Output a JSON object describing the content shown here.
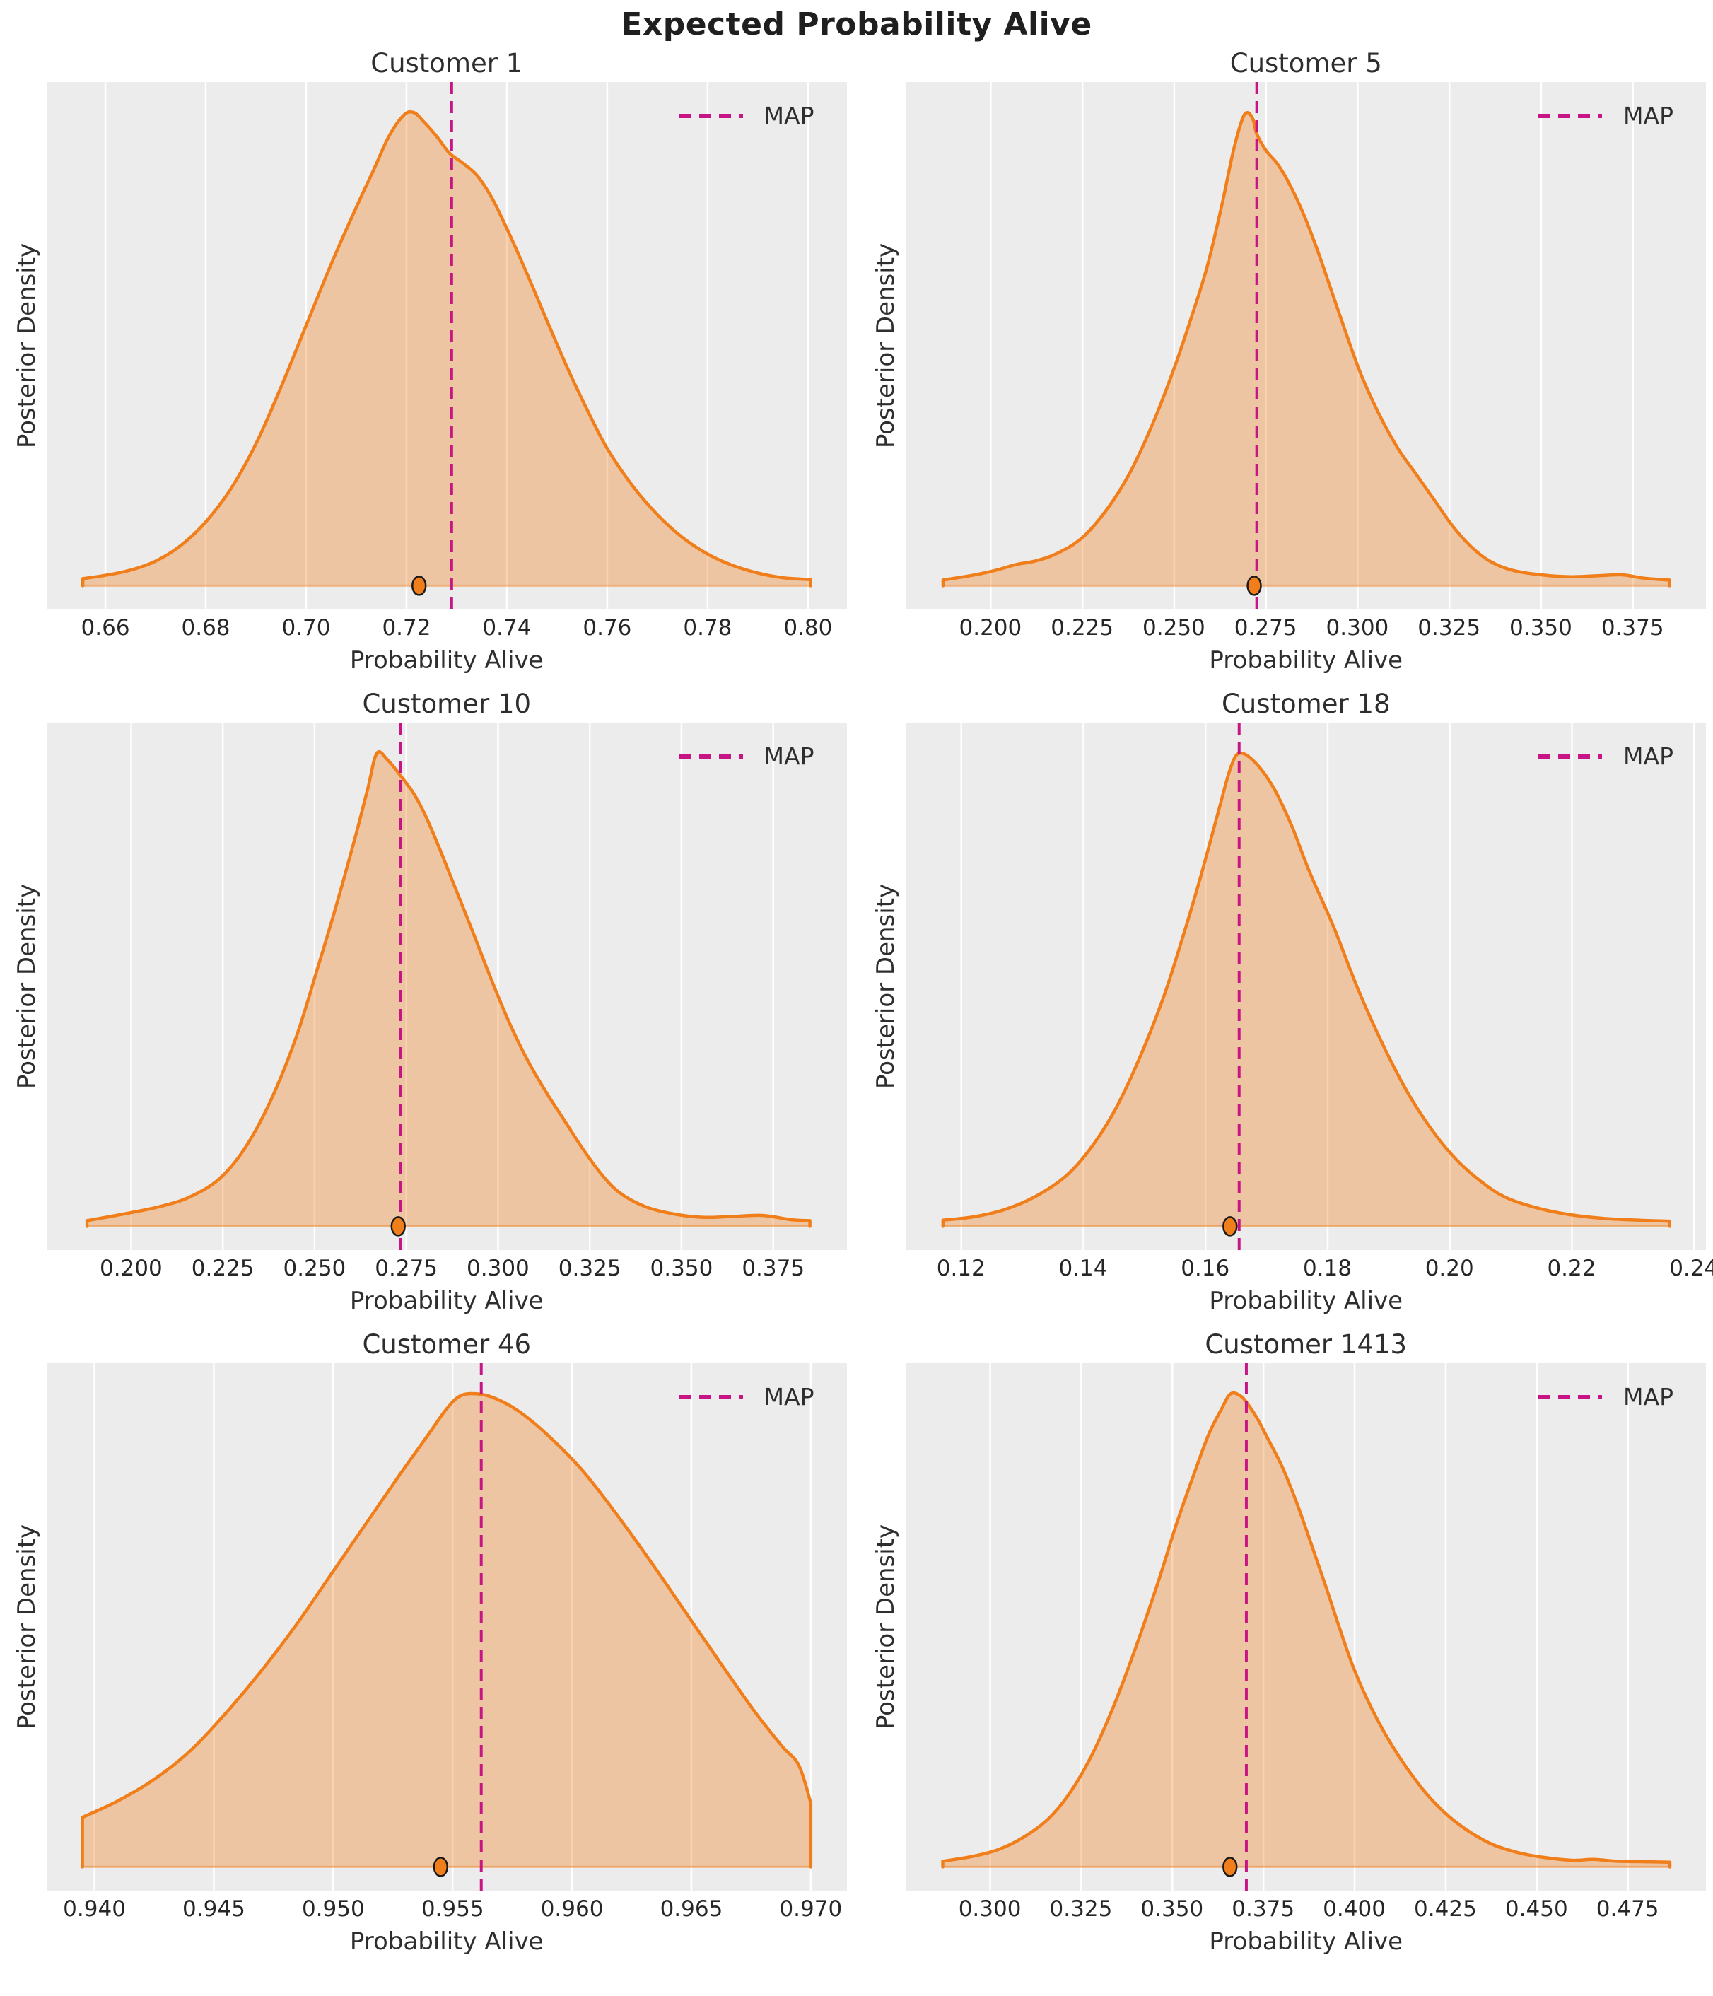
{
  "figure": {
    "suptitle": "Expected Probability Alive"
  },
  "colors": {
    "axes_background": "#ECECEC",
    "grid_line": "#FFFFFF",
    "curve": "#F07E1A",
    "fill_alpha": 0.35,
    "map_line": "#C71585",
    "dot_edge": "#1A1A1A",
    "text": "#262626"
  },
  "chart_data": [
    {
      "type": "area",
      "title": "Customer 1",
      "xlabel": "Probability Alive",
      "ylabel": "Posterior Density",
      "legend_label": "MAP",
      "legend_position": "upper right",
      "grid": "vertical-only",
      "xlim": [
        0.6483,
        0.8077
      ],
      "map_x": 0.729,
      "dot_x": 0.7225,
      "xticks": [
        {
          "value": 0.66,
          "label": "0.66"
        },
        {
          "value": 0.68,
          "label": "0.68"
        },
        {
          "value": 0.7,
          "label": "0.70"
        },
        {
          "value": 0.72,
          "label": "0.72"
        },
        {
          "value": 0.74,
          "label": "0.74"
        },
        {
          "value": 0.76,
          "label": "0.76"
        },
        {
          "value": 0.78,
          "label": "0.78"
        },
        {
          "value": 0.8,
          "label": "0.80"
        }
      ],
      "curve": [
        [
          0.6555,
          0.015
        ],
        [
          0.66,
          0.022
        ],
        [
          0.665,
          0.033
        ],
        [
          0.67,
          0.052
        ],
        [
          0.675,
          0.085
        ],
        [
          0.68,
          0.135
        ],
        [
          0.685,
          0.205
        ],
        [
          0.69,
          0.3
        ],
        [
          0.695,
          0.42
        ],
        [
          0.7,
          0.55
        ],
        [
          0.705,
          0.68
        ],
        [
          0.71,
          0.8
        ],
        [
          0.7135,
          0.88
        ],
        [
          0.7165,
          0.95
        ],
        [
          0.7195,
          0.995
        ],
        [
          0.7215,
          1.0
        ],
        [
          0.7235,
          0.98
        ],
        [
          0.726,
          0.95
        ],
        [
          0.7285,
          0.915
        ],
        [
          0.731,
          0.895
        ],
        [
          0.734,
          0.868
        ],
        [
          0.737,
          0.82
        ],
        [
          0.74,
          0.755
        ],
        [
          0.744,
          0.66
        ],
        [
          0.748,
          0.56
        ],
        [
          0.752,
          0.462
        ],
        [
          0.756,
          0.372
        ],
        [
          0.76,
          0.29
        ],
        [
          0.765,
          0.212
        ],
        [
          0.77,
          0.15
        ],
        [
          0.775,
          0.102
        ],
        [
          0.78,
          0.067
        ],
        [
          0.785,
          0.043
        ],
        [
          0.79,
          0.027
        ],
        [
          0.795,
          0.017
        ],
        [
          0.8005,
          0.013
        ]
      ]
    },
    {
      "type": "area",
      "title": "Customer 5",
      "xlabel": "Probability Alive",
      "ylabel": "Posterior Density",
      "legend_label": "MAP",
      "legend_position": "upper right",
      "grid": "vertical-only",
      "xlim": [
        0.177,
        0.395
      ],
      "map_x": 0.2725,
      "dot_x": 0.2718,
      "xticks": [
        {
          "value": 0.2,
          "label": "0.200"
        },
        {
          "value": 0.225,
          "label": "0.225"
        },
        {
          "value": 0.25,
          "label": "0.250"
        },
        {
          "value": 0.275,
          "label": "0.275"
        },
        {
          "value": 0.3,
          "label": "0.300"
        },
        {
          "value": 0.325,
          "label": "0.325"
        },
        {
          "value": 0.35,
          "label": "0.350"
        },
        {
          "value": 0.375,
          "label": "0.375"
        }
      ],
      "curve": [
        [
          0.187,
          0.012
        ],
        [
          0.195,
          0.022
        ],
        [
          0.201,
          0.032
        ],
        [
          0.207,
          0.045
        ],
        [
          0.212,
          0.052
        ],
        [
          0.218,
          0.068
        ],
        [
          0.225,
          0.102
        ],
        [
          0.232,
          0.165
        ],
        [
          0.238,
          0.24
        ],
        [
          0.244,
          0.34
        ],
        [
          0.25,
          0.46
        ],
        [
          0.255,
          0.575
        ],
        [
          0.259,
          0.675
        ],
        [
          0.263,
          0.805
        ],
        [
          0.266,
          0.915
        ],
        [
          0.2685,
          0.985
        ],
        [
          0.27,
          1.0
        ],
        [
          0.2715,
          0.985
        ],
        [
          0.2725,
          0.955
        ],
        [
          0.275,
          0.92
        ],
        [
          0.278,
          0.893
        ],
        [
          0.281,
          0.855
        ],
        [
          0.285,
          0.79
        ],
        [
          0.289,
          0.71
        ],
        [
          0.293,
          0.62
        ],
        [
          0.297,
          0.53
        ],
        [
          0.301,
          0.445
        ],
        [
          0.306,
          0.36
        ],
        [
          0.311,
          0.29
        ],
        [
          0.316,
          0.235
        ],
        [
          0.321,
          0.18
        ],
        [
          0.326,
          0.125
        ],
        [
          0.331,
          0.082
        ],
        [
          0.336,
          0.052
        ],
        [
          0.342,
          0.033
        ],
        [
          0.35,
          0.023
        ],
        [
          0.358,
          0.019
        ],
        [
          0.365,
          0.021
        ],
        [
          0.372,
          0.023
        ],
        [
          0.378,
          0.016
        ],
        [
          0.385,
          0.012
        ]
      ]
    },
    {
      "type": "area",
      "title": "Customer 10",
      "xlabel": "Probability Alive",
      "ylabel": "Posterior Density",
      "legend_label": "MAP",
      "legend_position": "upper right",
      "grid": "vertical-only",
      "xlim": [
        0.177,
        0.395
      ],
      "map_x": 0.2735,
      "dot_x": 0.2728,
      "xticks": [
        {
          "value": 0.2,
          "label": "0.200"
        },
        {
          "value": 0.225,
          "label": "0.225"
        },
        {
          "value": 0.25,
          "label": "0.250"
        },
        {
          "value": 0.275,
          "label": "0.275"
        },
        {
          "value": 0.3,
          "label": "0.300"
        },
        {
          "value": 0.325,
          "label": "0.325"
        },
        {
          "value": 0.35,
          "label": "0.350"
        },
        {
          "value": 0.375,
          "label": "0.375"
        }
      ],
      "curve": [
        [
          0.188,
          0.012
        ],
        [
          0.198,
          0.026
        ],
        [
          0.208,
          0.042
        ],
        [
          0.216,
          0.062
        ],
        [
          0.224,
          0.1
        ],
        [
          0.231,
          0.165
        ],
        [
          0.238,
          0.265
        ],
        [
          0.245,
          0.4
        ],
        [
          0.251,
          0.55
        ],
        [
          0.256,
          0.68
        ],
        [
          0.261,
          0.82
        ],
        [
          0.2645,
          0.925
        ],
        [
          0.267,
          1.0
        ],
        [
          0.27,
          0.985
        ],
        [
          0.2735,
          0.952
        ],
        [
          0.277,
          0.915
        ],
        [
          0.28,
          0.872
        ],
        [
          0.284,
          0.8
        ],
        [
          0.288,
          0.722
        ],
        [
          0.293,
          0.625
        ],
        [
          0.298,
          0.525
        ],
        [
          0.303,
          0.432
        ],
        [
          0.308,
          0.352
        ],
        [
          0.313,
          0.285
        ],
        [
          0.318,
          0.225
        ],
        [
          0.323,
          0.165
        ],
        [
          0.328,
          0.112
        ],
        [
          0.333,
          0.072
        ],
        [
          0.34,
          0.042
        ],
        [
          0.348,
          0.026
        ],
        [
          0.356,
          0.019
        ],
        [
          0.364,
          0.021
        ],
        [
          0.372,
          0.023
        ],
        [
          0.38,
          0.014
        ],
        [
          0.385,
          0.012
        ]
      ]
    },
    {
      "type": "area",
      "title": "Customer 18",
      "xlabel": "Probability Alive",
      "ylabel": "Posterior Density",
      "legend_label": "MAP",
      "legend_position": "upper right",
      "grid": "vertical-only",
      "xlim": [
        0.111,
        0.242
      ],
      "map_x": 0.1655,
      "dot_x": 0.164,
      "xticks": [
        {
          "value": 0.12,
          "label": "0.12"
        },
        {
          "value": 0.14,
          "label": "0.14"
        },
        {
          "value": 0.16,
          "label": "0.16"
        },
        {
          "value": 0.18,
          "label": "0.18"
        },
        {
          "value": 0.2,
          "label": "0.20"
        },
        {
          "value": 0.22,
          "label": "0.22"
        },
        {
          "value": 0.24,
          "label": "0.24"
        }
      ],
      "curve": [
        [
          0.117,
          0.013
        ],
        [
          0.122,
          0.02
        ],
        [
          0.127,
          0.035
        ],
        [
          0.132,
          0.062
        ],
        [
          0.137,
          0.105
        ],
        [
          0.141,
          0.162
        ],
        [
          0.145,
          0.242
        ],
        [
          0.149,
          0.35
        ],
        [
          0.153,
          0.48
        ],
        [
          0.156,
          0.6
        ],
        [
          0.159,
          0.73
        ],
        [
          0.162,
          0.872
        ],
        [
          0.164,
          0.965
        ],
        [
          0.1655,
          1.0
        ],
        [
          0.168,
          0.982
        ],
        [
          0.171,
          0.93
        ],
        [
          0.174,
          0.85
        ],
        [
          0.177,
          0.75
        ],
        [
          0.181,
          0.632
        ],
        [
          0.185,
          0.5
        ],
        [
          0.189,
          0.385
        ],
        [
          0.193,
          0.285
        ],
        [
          0.197,
          0.205
        ],
        [
          0.201,
          0.142
        ],
        [
          0.205,
          0.096
        ],
        [
          0.209,
          0.062
        ],
        [
          0.214,
          0.04
        ],
        [
          0.219,
          0.026
        ],
        [
          0.225,
          0.017
        ],
        [
          0.231,
          0.013
        ],
        [
          0.236,
          0.011
        ]
      ]
    },
    {
      "type": "area",
      "title": "Customer 46",
      "xlabel": "Probability Alive",
      "ylabel": "Posterior Density",
      "legend_label": "MAP",
      "legend_position": "upper right",
      "grid": "vertical-only",
      "xlim": [
        0.938,
        0.9715
      ],
      "map_x": 0.9562,
      "dot_x": 0.9545,
      "xticks": [
        {
          "value": 0.94,
          "label": "0.940"
        },
        {
          "value": 0.945,
          "label": "0.945"
        },
        {
          "value": 0.95,
          "label": "0.950"
        },
        {
          "value": 0.955,
          "label": "0.955"
        },
        {
          "value": 0.96,
          "label": "0.960"
        },
        {
          "value": 0.965,
          "label": "0.965"
        },
        {
          "value": 0.97,
          "label": "0.970"
        }
      ],
      "curve": [
        [
          0.9395,
          0.105
        ],
        [
          0.941,
          0.14
        ],
        [
          0.9425,
          0.185
        ],
        [
          0.944,
          0.245
        ],
        [
          0.9455,
          0.325
        ],
        [
          0.947,
          0.415
        ],
        [
          0.9485,
          0.515
        ],
        [
          0.95,
          0.625
        ],
        [
          0.9515,
          0.735
        ],
        [
          0.9528,
          0.83
        ],
        [
          0.954,
          0.915
        ],
        [
          0.9547,
          0.965
        ],
        [
          0.9553,
          0.995
        ],
        [
          0.956,
          1.0
        ],
        [
          0.9568,
          0.99
        ],
        [
          0.9578,
          0.962
        ],
        [
          0.959,
          0.912
        ],
        [
          0.9604,
          0.84
        ],
        [
          0.9618,
          0.75
        ],
        [
          0.9633,
          0.645
        ],
        [
          0.9648,
          0.535
        ],
        [
          0.9663,
          0.425
        ],
        [
          0.9677,
          0.325
        ],
        [
          0.9688,
          0.255
        ],
        [
          0.9695,
          0.215
        ],
        [
          0.97,
          0.135
        ]
      ]
    },
    {
      "type": "area",
      "title": "Customer 1413",
      "xlabel": "Probability Alive",
      "ylabel": "Posterior Density",
      "legend_label": "MAP",
      "legend_position": "upper right",
      "grid": "vertical-only",
      "xlim": [
        0.277,
        0.4965
      ],
      "map_x": 0.3703,
      "dot_x": 0.3658,
      "xticks": [
        {
          "value": 0.3,
          "label": "0.300"
        },
        {
          "value": 0.325,
          "label": "0.325"
        },
        {
          "value": 0.35,
          "label": "0.350"
        },
        {
          "value": 0.375,
          "label": "0.375"
        },
        {
          "value": 0.4,
          "label": "0.400"
        },
        {
          "value": 0.425,
          "label": "0.425"
        },
        {
          "value": 0.45,
          "label": "0.450"
        },
        {
          "value": 0.475,
          "label": "0.475"
        }
      ],
      "curve": [
        [
          0.287,
          0.012
        ],
        [
          0.295,
          0.022
        ],
        [
          0.302,
          0.036
        ],
        [
          0.309,
          0.062
        ],
        [
          0.316,
          0.102
        ],
        [
          0.322,
          0.158
        ],
        [
          0.328,
          0.238
        ],
        [
          0.334,
          0.342
        ],
        [
          0.34,
          0.465
        ],
        [
          0.346,
          0.6
        ],
        [
          0.351,
          0.722
        ],
        [
          0.356,
          0.832
        ],
        [
          0.36,
          0.915
        ],
        [
          0.3635,
          0.968
        ],
        [
          0.366,
          1.0
        ],
        [
          0.3688,
          0.995
        ],
        [
          0.371,
          0.975
        ],
        [
          0.3735,
          0.945
        ],
        [
          0.376,
          0.908
        ],
        [
          0.38,
          0.848
        ],
        [
          0.384,
          0.772
        ],
        [
          0.388,
          0.685
        ],
        [
          0.392,
          0.595
        ],
        [
          0.396,
          0.502
        ],
        [
          0.4,
          0.415
        ],
        [
          0.405,
          0.33
        ],
        [
          0.41,
          0.26
        ],
        [
          0.415,
          0.202
        ],
        [
          0.42,
          0.152
        ],
        [
          0.426,
          0.106
        ],
        [
          0.432,
          0.072
        ],
        [
          0.438,
          0.047
        ],
        [
          0.445,
          0.03
        ],
        [
          0.452,
          0.02
        ],
        [
          0.46,
          0.014
        ],
        [
          0.4655,
          0.016
        ],
        [
          0.472,
          0.012
        ],
        [
          0.48,
          0.011
        ],
        [
          0.4865,
          0.01
        ]
      ]
    }
  ]
}
